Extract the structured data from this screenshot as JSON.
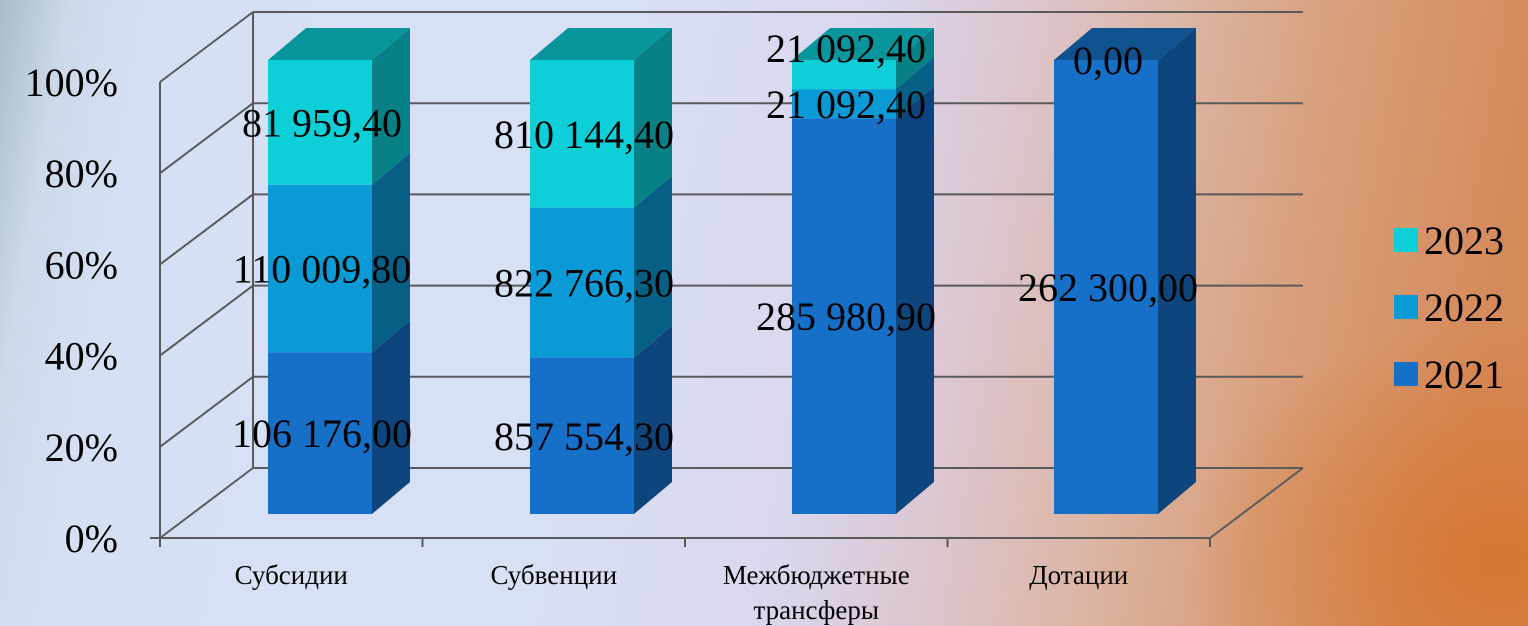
{
  "chart_data": {
    "type": "bar",
    "stacked": "percent",
    "style": "3d-column",
    "categories": [
      "Субсидии",
      "Субвенции",
      "Межбюджетные трансферы",
      "Дотации"
    ],
    "category_lines": [
      [
        "Субсидии"
      ],
      [
        "Субвенции"
      ],
      [
        "Межбюджетные",
        "трансферы"
      ],
      [
        "Дотации"
      ]
    ],
    "series": [
      {
        "name": "2021",
        "color": "#1670c8",
        "values": [
          106176.0,
          857554.3,
          285980.9,
          262300.0
        ],
        "labels": [
          "106 176,00",
          "857 554,30",
          "285 980,90",
          "262 300,00"
        ]
      },
      {
        "name": "2022",
        "color": "#0a9bd6",
        "values": [
          110009.8,
          822766.3,
          21092.4,
          0
        ],
        "labels": [
          "110 009,80",
          "822 766,30",
          "21 092,40",
          ""
        ]
      },
      {
        "name": "2023",
        "color": "#0ccfd8",
        "values": [
          81959.4,
          810144.4,
          21092.4,
          0.0
        ],
        "labels": [
          "81 959,40",
          "810 144,40",
          "21 092,40",
          "0,00"
        ]
      }
    ],
    "y_ticks": [
      "0%",
      "20%",
      "40%",
      "60%",
      "80%",
      "100%"
    ],
    "ylim": [
      0,
      100
    ],
    "grid": true,
    "legend": {
      "position": "right",
      "order": [
        "2023",
        "2022",
        "2021"
      ]
    }
  }
}
